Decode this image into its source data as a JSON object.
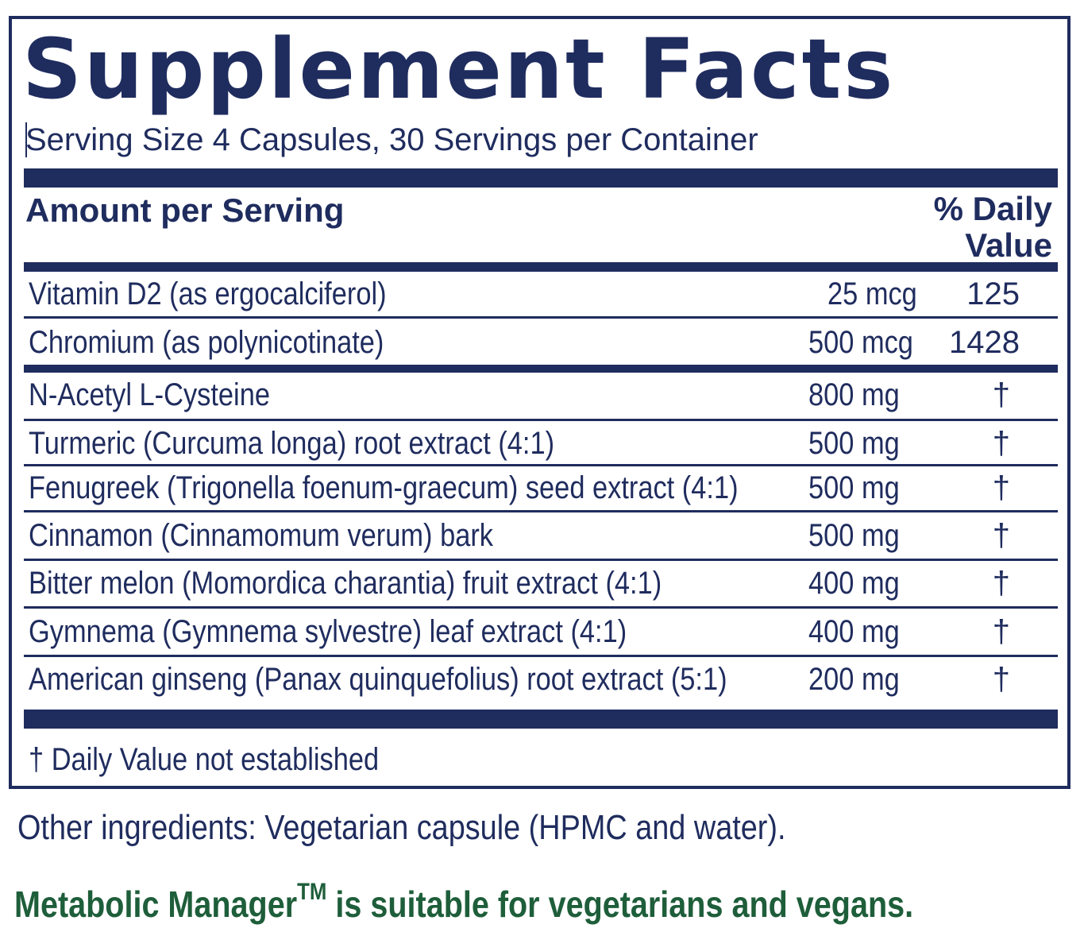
{
  "title": "Supplement Facts",
  "serving": "Serving Size 4 Capsules, 30 Servings per Container",
  "header": {
    "amount_label": "Amount per Serving",
    "dv_line1": "% Daily",
    "dv_line2": "Value"
  },
  "vitamins": [
    {
      "name": "Vitamin D2 (as ergocalciferol)",
      "amount": "25 mcg",
      "dv": "125"
    },
    {
      "name": "Chromium (as polynicotinate)",
      "amount": "500 mcg",
      "dv": "1428"
    }
  ],
  "ingredients": [
    {
      "name": "N-Acetyl L-Cysteine",
      "amount": "800 mg",
      "dv": "†"
    },
    {
      "name": "Turmeric (Curcuma longa) root extract (4:1)",
      "amount": "500 mg",
      "dv": "†"
    },
    {
      "name": "Fenugreek (Trigonella foenum-graecum) seed extract (4:1)",
      "amount": "500 mg",
      "dv": "†"
    },
    {
      "name": "Cinnamon (Cinnamomum verum) bark",
      "amount": "500 mg",
      "dv": "†"
    },
    {
      "name": "Bitter melon (Momordica charantia) fruit extract (4:1)",
      "amount": "400 mg",
      "dv": "†"
    },
    {
      "name": "Gymnema (Gymnema sylvestre) leaf extract (4:1)",
      "amount": "400 mg",
      "dv": "†"
    },
    {
      "name": "American ginseng (Panax quinquefolius) root extract (5:1)",
      "amount": "200 mg",
      "dv": "†"
    }
  ],
  "footnote": "†  Daily Value not established",
  "other_ingredients": "Other ingredients: Vegetarian capsule (HPMC and water).",
  "vegan_statement": {
    "product": "Metabolic Manager",
    "trademark": "TM",
    "rest": " is suitable for vegetarians and vegans."
  },
  "colors": {
    "navy": "#1f2c5e",
    "green": "#1e5e3a"
  }
}
